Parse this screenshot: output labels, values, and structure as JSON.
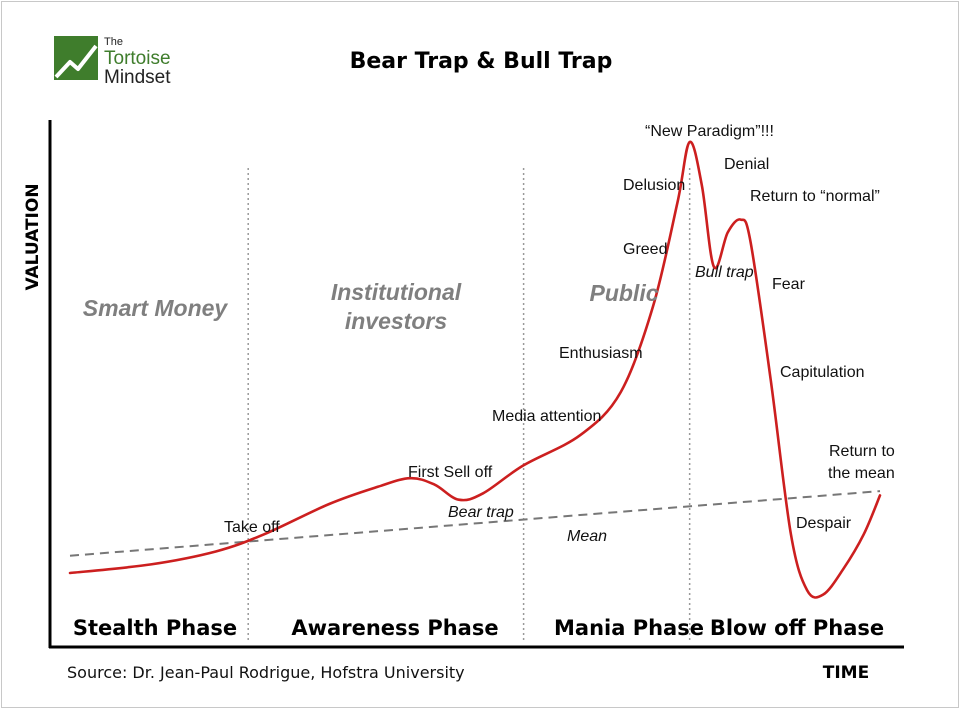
{
  "logo": {
    "line1": "The",
    "line2": "Tortoise",
    "line3": "Mindset"
  },
  "chart_data": {
    "type": "line",
    "title": "Bear Trap & Bull Trap",
    "ylabel": "VALUATION",
    "xlabel": "TIME",
    "source": "Source: Dr. Jean-Paul Rodrigue, Hofstra University",
    "groups": [
      "Smart Money",
      "Institutional investors",
      "Public"
    ],
    "group_lines": [
      [
        "Institutional",
        "investors"
      ]
    ],
    "phases": [
      "Stealth Phase",
      "Awareness Phase",
      "Mania Phase",
      "Blow off Phase"
    ],
    "annotations": {
      "take_off": "Take off",
      "first_sell_off": "First Sell off",
      "bear_trap": "Bear trap",
      "media_attention": "Media attention",
      "mean": "Mean",
      "enthusiasm": "Enthusiasm",
      "greed": "Greed",
      "delusion": "Delusion",
      "new_paradigm": "“New Paradigm”!!!",
      "denial": "Denial",
      "return_to_normal": "Return to “normal”",
      "bull_trap": "Bull trap",
      "fear": "Fear",
      "capitulation": "Capitulation",
      "return_to_mean": [
        "Return to",
        "the mean"
      ],
      "despair": "Despair"
    },
    "series": [
      {
        "name": "Mean",
        "style": "dashed",
        "color": "#777777",
        "points": [
          [
            0,
            0.04
          ],
          [
            100,
            0.19
          ]
        ]
      },
      {
        "name": "",
        "style": "solid",
        "color": "#cc1f1f",
        "points": [
          [
            0,
            0.0
          ],
          [
            10,
            0.02
          ],
          [
            18,
            0.05
          ],
          [
            24,
            0.09
          ],
          [
            32,
            0.16
          ],
          [
            38,
            0.2
          ],
          [
            42,
            0.22
          ],
          [
            45,
            0.205
          ],
          [
            48,
            0.17
          ],
          [
            51,
            0.185
          ],
          [
            56,
            0.25
          ],
          [
            63,
            0.32
          ],
          [
            68,
            0.42
          ],
          [
            72,
            0.62
          ],
          [
            75,
            0.86
          ],
          [
            76.5,
            1.0
          ],
          [
            78,
            0.9
          ],
          [
            79.5,
            0.71
          ],
          [
            81.2,
            0.79
          ],
          [
            82.8,
            0.82
          ],
          [
            84,
            0.77
          ],
          [
            86.5,
            0.45
          ],
          [
            89,
            0.09
          ],
          [
            91,
            -0.04
          ],
          [
            93,
            -0.05
          ],
          [
            95.5,
            0.01
          ],
          [
            98,
            0.09
          ],
          [
            100,
            0.18
          ]
        ]
      }
    ],
    "phase_boundaries": [
      22,
      56,
      76.5
    ],
    "xlim": [
      0,
      100
    ],
    "ylim": [
      -0.05,
      1.0
    ],
    "grid": false,
    "colors": {
      "curve": "#cc1f1f",
      "mean": "#777777",
      "dividers": "#999999",
      "logo_green": "#3f7d2c"
    }
  }
}
